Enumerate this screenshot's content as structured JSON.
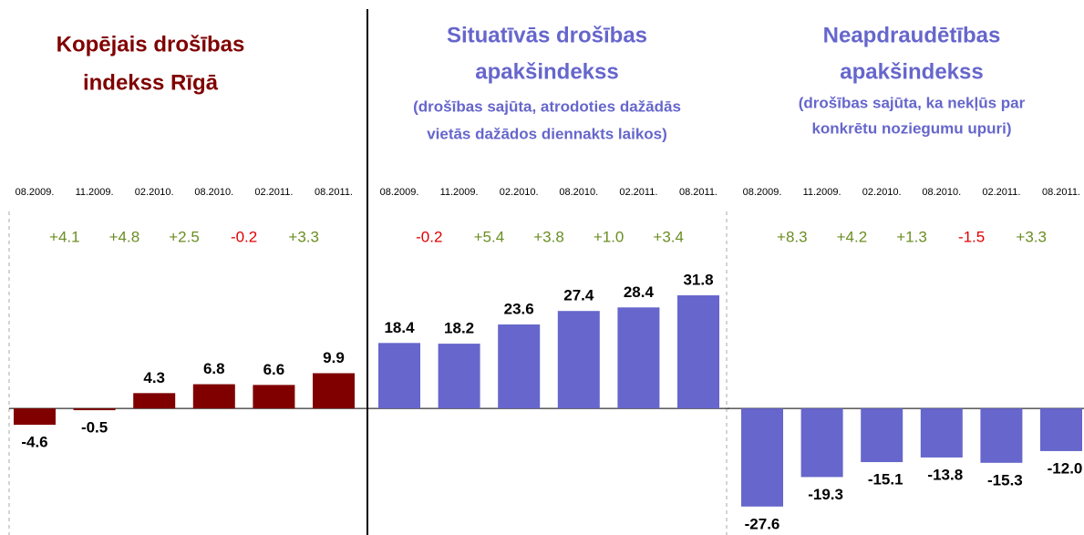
{
  "chart_data": [
    {
      "type": "bar",
      "title": [
        "Kopējais drošības",
        "indekss Rīgā"
      ],
      "title_color": "#800000",
      "categories": [
        "08.2009.",
        "11.2009.",
        "02.2010.",
        "08.2010.",
        "02.2011.",
        "08.2011."
      ],
      "values": [
        -4.6,
        -0.5,
        4.3,
        6.8,
        6.6,
        9.9
      ],
      "color": "#800000",
      "changes": [
        4.1,
        4.8,
        2.5,
        -0.2,
        3.3
      ],
      "change_labels": [
        "+4.1",
        "+4.8",
        "+2.5",
        "-0.2",
        "+3.3"
      ],
      "positive_color": "#6b8e23",
      "negative_color": "#e00000",
      "ylim": [
        -35.6,
        55.9
      ]
    },
    {
      "type": "bar",
      "title": [
        "Situatīvās drošības",
        "apakšindekss"
      ],
      "title_color": "#6666cc",
      "subtitle": [
        "(drošības sajūta, atrodoties dažādās",
        "vietās dažādos diennakts laikos)"
      ],
      "categories": [
        "08.2009.",
        "11.2009.",
        "02.2010.",
        "08.2010.",
        "02.2011.",
        "08.2011."
      ],
      "values": [
        18.4,
        18.2,
        23.6,
        27.4,
        28.4,
        31.8
      ],
      "color": "#6666cc",
      "changes": [
        -0.2,
        5.4,
        3.8,
        1.0,
        3.4
      ],
      "change_labels": [
        "-0.2",
        "+5.4",
        "+3.8",
        "+1.0",
        "+3.4"
      ],
      "positive_color": "#6b8e23",
      "negative_color": "#e00000",
      "ylim": [
        -35.6,
        55.9
      ]
    },
    {
      "type": "bar",
      "title": [
        "Neapdraudētības",
        "apakšindekss"
      ],
      "title_color": "#6666cc",
      "subtitle": [
        "(drošības sajūta, ka nekļūs par",
        "konkrētu noziegumu upuri)"
      ],
      "categories": [
        "08.2009.",
        "11.2009.",
        "02.2010.",
        "08.2010.",
        "02.2011.",
        "08.2011."
      ],
      "values": [
        -27.6,
        -19.3,
        -15.1,
        -13.8,
        -15.3,
        -12.0
      ],
      "value_labels": [
        "-27.6",
        "-19.3",
        "-15.1",
        "-13.8",
        "-15.3",
        "-12.0"
      ],
      "color": "#6666cc",
      "changes": [
        8.3,
        4.2,
        1.3,
        -1.5,
        3.3
      ],
      "change_labels": [
        "+8.3",
        "+4.2",
        "+1.3",
        "-1.5",
        "+3.3"
      ],
      "positive_color": "#6b8e23",
      "negative_color": "#e00000",
      "ylim": [
        -35.6,
        55.9
      ]
    }
  ]
}
